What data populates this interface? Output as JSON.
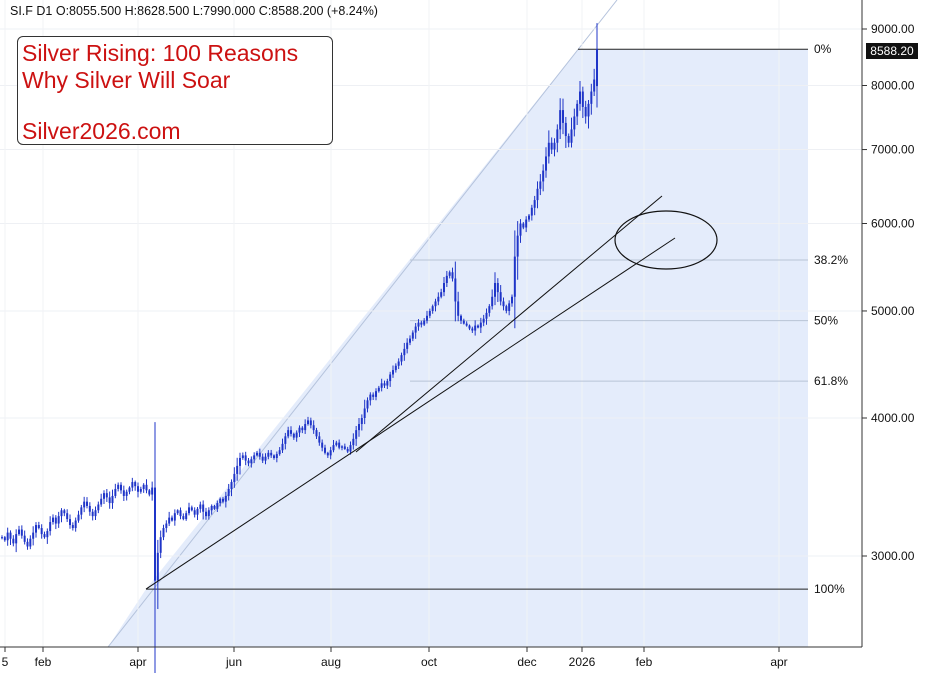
{
  "header": {
    "ohlc": "SI.F  D1  O:8055.500  H:8628.500  L:7990.000  C:8588.200  (+8.24%)"
  },
  "annotation": {
    "line1": "Silver Rising: 100 Reasons",
    "line2": "Why Silver Will Soar",
    "site": "Silver2026.com"
  },
  "last_price": "8588.20",
  "colors": {
    "candle": "#1f35c8",
    "fill": "#dbe6fa",
    "text_red": "#cc1111",
    "fib_line": "#b8c4d6"
  },
  "chart_data": {
    "type": "candlestick",
    "symbol": "SI.F",
    "timeframe": "D1",
    "open": 8055.5,
    "high": 8628.5,
    "low": 7990.0,
    "close": 8588.2,
    "change": "+8.24%",
    "y_axis": {
      "scale": "log",
      "ticks": [
        3000,
        4000,
        5000,
        6000,
        7000,
        8000,
        9000
      ],
      "tick_labels": [
        "3000.00",
        "4000.00",
        "5000.00",
        "6000.00",
        "7000.00",
        "8000.00",
        "9000.00"
      ]
    },
    "x_axis": {
      "tick_labels": [
        "5",
        "feb",
        "apr",
        "jun",
        "aug",
        "oct",
        "dec",
        "2026",
        "feb",
        "apr"
      ]
    },
    "fibonacci": {
      "levels": [
        {
          "label": "0%",
          "price": 8628.5
        },
        {
          "label": "38.2%",
          "price": 5560
        },
        {
          "label": "50%",
          "price": 4900
        },
        {
          "label": "61.8%",
          "price": 4320
        },
        {
          "label": "100%",
          "price": 2800
        }
      ]
    },
    "candles_close": [
      3120,
      3100,
      3150,
      3110,
      3080,
      3140,
      3170,
      3130,
      3090,
      3060,
      3110,
      3150,
      3200,
      3180,
      3140,
      3120,
      3160,
      3220,
      3250,
      3210,
      3260,
      3300,
      3280,
      3240,
      3200,
      3180,
      3230,
      3270,
      3320,
      3360,
      3330,
      3290,
      3260,
      3300,
      3340,
      3380,
      3420,
      3390,
      3350,
      3400,
      3450,
      3480,
      3440,
      3400,
      3430,
      3460,
      3500,
      3470,
      3430,
      3450,
      3480,
      3440,
      3410,
      3460,
      2850,
      3020,
      3120,
      3180,
      3210,
      3250,
      3230,
      3280,
      3300,
      3260,
      3240,
      3280,
      3320,
      3300,
      3270,
      3310,
      3340,
      3290,
      3260,
      3300,
      3330,
      3310,
      3350,
      3380,
      3360,
      3400,
      3450,
      3500,
      3560,
      3620,
      3680,
      3700,
      3660,
      3640,
      3670,
      3700,
      3720,
      3690,
      3660,
      3690,
      3720,
      3700,
      3680,
      3710,
      3740,
      3790,
      3850,
      3900,
      3870,
      3840,
      3880,
      3920,
      3900,
      3950,
      3980,
      3940,
      3900,
      3850,
      3800,
      3760,
      3720,
      3700,
      3740,
      3780,
      3800,
      3760,
      3770,
      3750,
      3730,
      3780,
      3830,
      3900,
      3950,
      4000,
      4080,
      4150,
      4200,
      4180,
      4230,
      4260,
      4300,
      4280,
      4320,
      4380,
      4420,
      4460,
      4500,
      4560,
      4620,
      4680,
      4720,
      4780,
      4840,
      4880,
      4860,
      4900,
      4950,
      5000,
      5050,
      5100,
      5150,
      5200,
      5300,
      5380,
      5420,
      5350,
      5100,
      4950,
      4900,
      4870,
      4850,
      4820,
      4800,
      4850,
      4830,
      4880,
      4920,
      4980,
      5050,
      5150,
      5300,
      5200,
      5100,
      5050,
      5000,
      5080,
      5150,
      5600,
      5850,
      6000,
      5950,
      6050,
      6100,
      6200,
      6300,
      6450,
      6550,
      6700,
      6900,
      7100,
      7000,
      7100,
      7300,
      7600,
      7400,
      7200,
      7100,
      7300,
      7500,
      7700,
      7900,
      7650,
      7500,
      7700,
      7900,
      8100,
      8588
    ]
  }
}
